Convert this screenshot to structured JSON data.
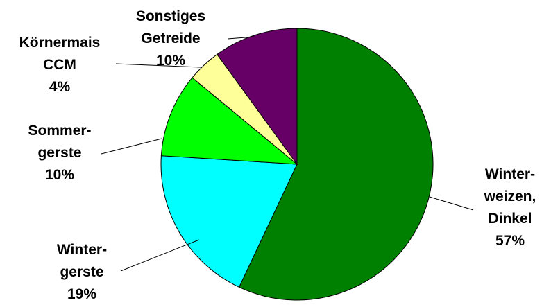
{
  "chart_data": {
    "type": "pie",
    "title": "",
    "slices": [
      {
        "label_lines": [
          "Winter-",
          "weizen,",
          "Dinkel"
        ],
        "percent_label": "57%",
        "value": 57,
        "color": "#008000"
      },
      {
        "label_lines": [
          "Winter-",
          "gerste"
        ],
        "percent_label": "19%",
        "value": 19,
        "color": "#00FFFF"
      },
      {
        "label_lines": [
          "Sommer-",
          "gerste"
        ],
        "percent_label": "10%",
        "value": 10,
        "color": "#00FF00"
      },
      {
        "label_lines": [
          "Körnermais",
          "CCM"
        ],
        "percent_label": "4%",
        "value": 4,
        "color": "#FFFF99"
      },
      {
        "label_lines": [
          "Sonstiges",
          "Getreide"
        ],
        "percent_label": "10%",
        "value": 10,
        "color": "#660066"
      }
    ],
    "start": "12 o'clock",
    "direction": "clockwise",
    "legend": "none"
  }
}
